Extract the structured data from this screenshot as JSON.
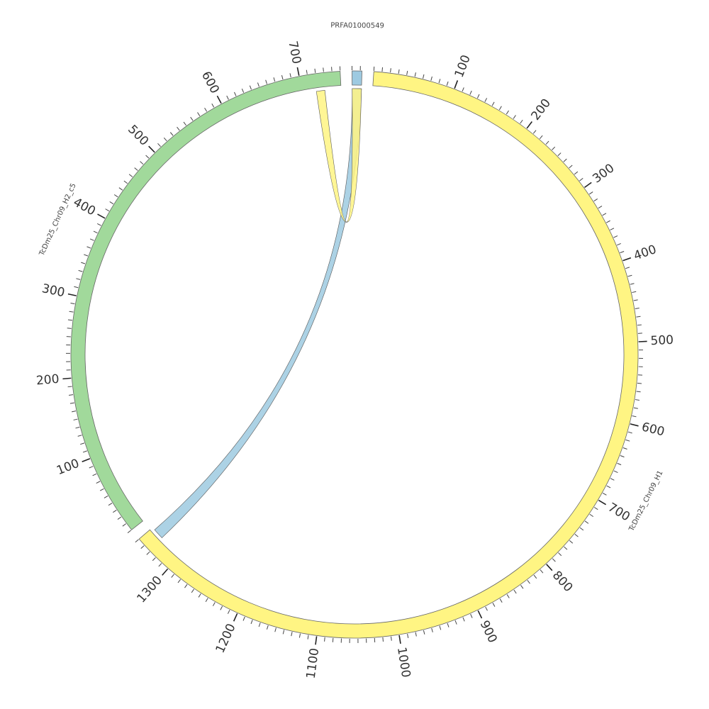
{
  "chart_data": {
    "type": "chord",
    "segments": [
      {
        "name": "PRFA01000549",
        "length": 12,
        "color": "#9ecae1",
        "ticks": []
      },
      {
        "name": "TcDm25_Chr09_H1",
        "length": 1350,
        "color": "#fff583",
        "ticks": [
          100,
          200,
          300,
          400,
          500,
          600,
          700,
          800,
          900,
          1000,
          1100,
          1200,
          1300
        ]
      },
      {
        "name": "TcDm25_Chr09_H2_c5",
        "length": 750,
        "color": "#a1d99b",
        "ticks": [
          100,
          200,
          300,
          400,
          500,
          600,
          700
        ]
      }
    ],
    "minor_tick_step": 10,
    "links": [
      {
        "source_segment": 0,
        "source": {
          "start": 0,
          "end": 12
        },
        "target_segment": 1,
        "target": {
          "start": 1332,
          "end": 1346
        },
        "color": "#9ecae1"
      },
      {
        "source_segment": 0,
        "source": {
          "start": 0,
          "end": 12
        },
        "target_segment": 2,
        "target": {
          "start": 718,
          "end": 729
        },
        "color": "#fff583"
      }
    ]
  }
}
